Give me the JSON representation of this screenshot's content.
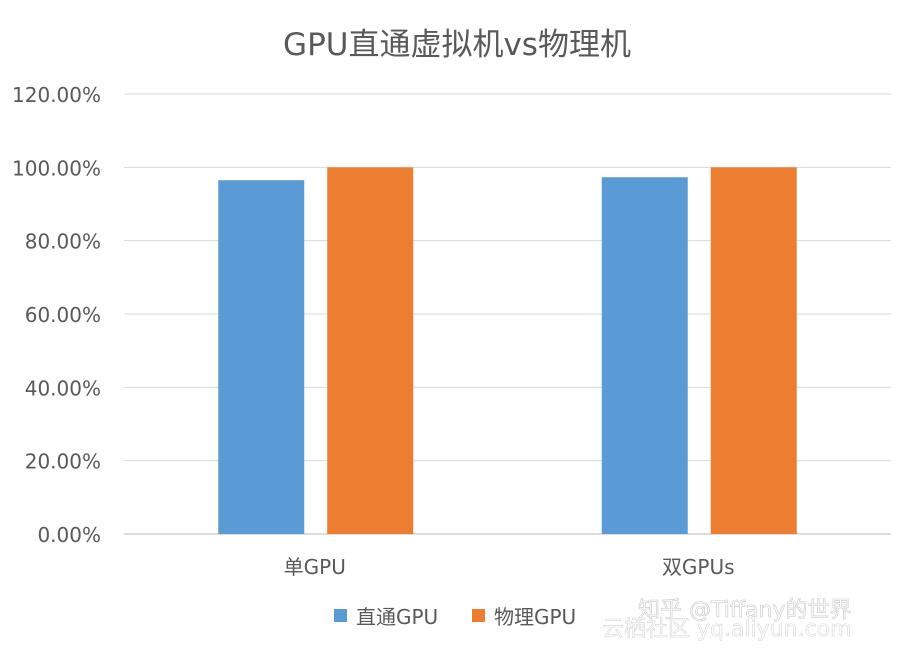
{
  "chart_data": {
    "type": "bar",
    "title": "GPU直通虚拟机vs物理机",
    "categories": [
      "单GPU",
      "双GPUs"
    ],
    "series": [
      {
        "name": "直通GPU",
        "values": [
          0.965,
          0.973
        ],
        "color": "#5B9BD5"
      },
      {
        "name": "物理GPU",
        "values": [
          1.0,
          1.0
        ],
        "color": "#ED7D31"
      }
    ],
    "yticks": [
      "0.00%",
      "20.00%",
      "40.00%",
      "60.00%",
      "80.00%",
      "100.00%",
      "120.00%"
    ],
    "ylim": [
      0,
      1.2
    ],
    "grid": true,
    "legend_position": "bottom"
  },
  "watermark": {
    "line1": "知乎 @Tiffany的世界",
    "line2": "云栖社区 yq.aliyun.com"
  }
}
